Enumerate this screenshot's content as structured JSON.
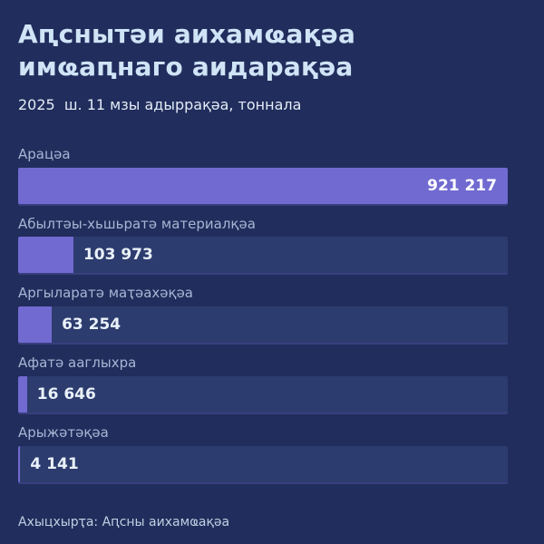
{
  "colors": {
    "background": "#212d5c",
    "bar_fill": "#716ad1",
    "bar_track": "#2d3c6e",
    "title_text": "#cfe4f6",
    "subtitle_text": "#e4ecf6",
    "label_text": "#a7b6d4",
    "value_text": "#e9f1f9",
    "value_text_inside_bar": "#ffffff"
  },
  "header": {
    "title": "Аԥснытәи аихамҩақәа имҩаԥнаго аидарақәа",
    "subtitle": "2025  ш. 11 мзы адыррақәа, тоннала"
  },
  "chart_data": {
    "type": "bar",
    "orientation": "horizontal",
    "title": "Аԥснытәи аихамҩақәа имҩаԥнаго аидарақәа",
    "subtitle": "2025 ш. 11 мзы адыррақәа, тоннала",
    "unit": "тоннала",
    "categories": [
      "Арацәа",
      "Абылтәы-хьшьратә материалқәа",
      "Аргыларатә маҭәахәқәа",
      "Афатә ааглыхра",
      "Арыжәтәқәа"
    ],
    "values": [
      921217,
      103973,
      63254,
      16646,
      4141
    ],
    "value_labels": [
      "921 217",
      "103 973",
      "63 254",
      "16 646",
      "4 141"
    ],
    "xlim": [
      0,
      921217
    ],
    "grid": false,
    "legend": false,
    "value_label_position_rule": "inside-right when bar > 50%, otherwise outside-right of fill"
  },
  "footer": {
    "source": "Ахыцхырҭа: Аԥсны аихамҩақәа"
  }
}
